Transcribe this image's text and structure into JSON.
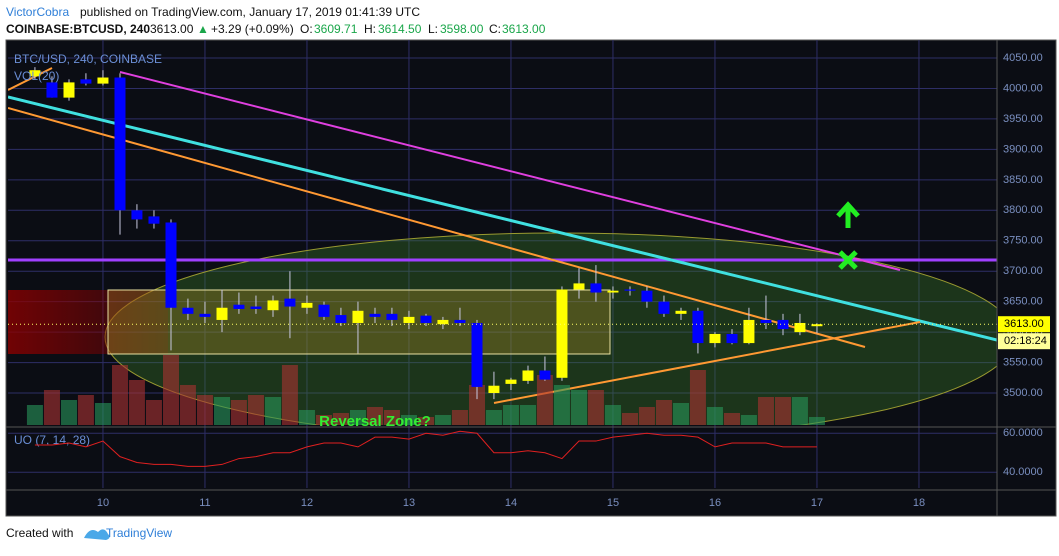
{
  "header": {
    "author": "VictorCobra",
    "published": "published on TradingView.com, January 17, 2019 01:41:39 UTC",
    "symbol": "COINBASE:BTCUSD, 240",
    "last": "3613.00",
    "arrow": "▲",
    "change": "+3.29 (+0.09%)",
    "o_label": "O:",
    "open": "3609.71",
    "h_label": "H:",
    "high": "3614.50",
    "l_label": "L:",
    "low": "3598.00",
    "c_label": "C:",
    "close": "3613.00"
  },
  "chart_data": {
    "type": "candlestick",
    "legend": "BTC/USD, 240, COINBASE",
    "volume_label": "VOL(20)",
    "annotation": "Reversal Zone?",
    "price_label": "3613.00",
    "countdown": "02:18:24",
    "last_price": 3613,
    "up_color": "#ffff00",
    "down_color": "#0000ff",
    "x": [
      9.333,
      9.5,
      9.667,
      9.833,
      10,
      10.167,
      10.333,
      10.5,
      10.667,
      10.833,
      11,
      11.167,
      11.333,
      11.5,
      11.667,
      11.833,
      12,
      12.167,
      12.333,
      12.5,
      12.667,
      12.833,
      13,
      13.167,
      13.333,
      13.5,
      13.667,
      13.833,
      14,
      14.167,
      14.333,
      14.5,
      14.667,
      14.833,
      15,
      15.167,
      15.333,
      15.5,
      15.667,
      15.833,
      16,
      16.167,
      16.333,
      16.5,
      16.667,
      16.833,
      17
    ],
    "open": [
      4020,
      4010,
      3985,
      4015,
      4008,
      4018,
      3800,
      3790,
      3780,
      3640,
      3630,
      3620,
      3645,
      3642,
      3636,
      3655,
      3640,
      3645,
      3628,
      3615,
      3630,
      3630,
      3615,
      3627,
      3613,
      3620,
      3615,
      3500,
      3515,
      3520,
      3537,
      3525,
      3670,
      3680,
      3665,
      3670,
      3668,
      3650,
      3630,
      3635,
      3582,
      3597,
      3582,
      3620,
      3620,
      3600,
      3609.71
    ],
    "high": [
      4035,
      4020,
      4015,
      4025,
      4030,
      4025,
      3810,
      3800,
      3785,
      3655,
      3650,
      3670,
      3665,
      3660,
      3660,
      3700,
      3660,
      3650,
      3640,
      3650,
      3640,
      3640,
      3635,
      3630,
      3625,
      3640,
      3620,
      3535,
      3525,
      3545,
      3560,
      3675,
      3705,
      3710,
      3675,
      3675,
      3675,
      3660,
      3640,
      3640,
      3600,
      3605,
      3640,
      3660,
      3630,
      3630,
      3614.5
    ],
    "low": [
      4015,
      3985,
      3980,
      4005,
      4005,
      3760,
      3770,
      3770,
      3570,
      3620,
      3615,
      3600,
      3630,
      3630,
      3625,
      3590,
      3630,
      3620,
      3610,
      3565,
      3615,
      3610,
      3605,
      3610,
      3605,
      3610,
      3490,
      3490,
      3505,
      3515,
      3520,
      3520,
      3655,
      3650,
      3655,
      3660,
      3640,
      3625,
      3620,
      3565,
      3575,
      3580,
      3580,
      3605,
      3595,
      3595,
      3598
    ],
    "close": [
      4030,
      3985,
      4010,
      4008,
      4018,
      3800,
      3785,
      3778,
      3640,
      3630,
      3625,
      3640,
      3638,
      3638,
      3652,
      3642,
      3648,
      3625,
      3615,
      3635,
      3625,
      3620,
      3625,
      3615,
      3620,
      3615,
      3510,
      3512,
      3522,
      3537,
      3522,
      3670,
      3680,
      3665,
      3668,
      3668,
      3650,
      3630,
      3635,
      3582,
      3597,
      3582,
      3620,
      3615,
      3605,
      3615,
      3613
    ],
    "volume": [
      20,
      35,
      25,
      30,
      22,
      60,
      45,
      25,
      70,
      40,
      30,
      28,
      25,
      30,
      28,
      60,
      15,
      10,
      12,
      15,
      18,
      15,
      10,
      8,
      10,
      15,
      40,
      15,
      20,
      20,
      50,
      40,
      35,
      35,
      20,
      12,
      18,
      25,
      22,
      55,
      18,
      12,
      10,
      28,
      28,
      28,
      8
    ],
    "xlim": [
      9.069,
      18.765
    ],
    "xticks": [
      10,
      11,
      12,
      13,
      14,
      15,
      16,
      17,
      18
    ],
    "ylim": [
      3447.5,
      4079.6
    ],
    "yticks": [
      {
        "value": 3500,
        "label": "3500.00"
      },
      {
        "value": 3550,
        "label": "3550.00"
      },
      {
        "value": 3600,
        "label": "3600.00"
      },
      {
        "value": 3650,
        "label": "3650.00"
      },
      {
        "value": 3700,
        "label": "3700.00"
      },
      {
        "value": 3750,
        "label": "3750.00"
      },
      {
        "value": 3800,
        "label": "3800.00"
      },
      {
        "value": 3850,
        "label": "3850.00"
      },
      {
        "value": 3900,
        "label": "3900.00"
      },
      {
        "value": 3950,
        "label": "3950.00"
      },
      {
        "value": 4000,
        "label": "4000.00"
      },
      {
        "value": 4050,
        "label": "4050.00"
      }
    ],
    "indicator": {
      "name": "UO (7, 14, 28)",
      "color": "#e02020",
      "values": [
        54,
        54,
        55,
        53,
        56,
        48,
        45,
        44,
        44,
        43,
        43,
        44,
        47,
        48,
        50,
        50,
        53,
        55,
        55,
        53,
        58,
        58,
        57,
        60,
        59,
        61,
        60,
        50,
        50,
        51,
        50,
        47,
        56,
        56,
        58,
        59,
        60,
        59,
        59,
        58,
        53,
        55,
        55,
        55,
        53,
        53,
        53
      ]
    },
    "y2lim": [
      31.9,
      62.7
    ],
    "y2ticks": [
      {
        "value": 40,
        "label": "40.0000"
      },
      {
        "value": 60,
        "label": "60.0000"
      }
    ]
  },
  "footer": {
    "created": "Created with",
    "brand": "TradingView"
  }
}
